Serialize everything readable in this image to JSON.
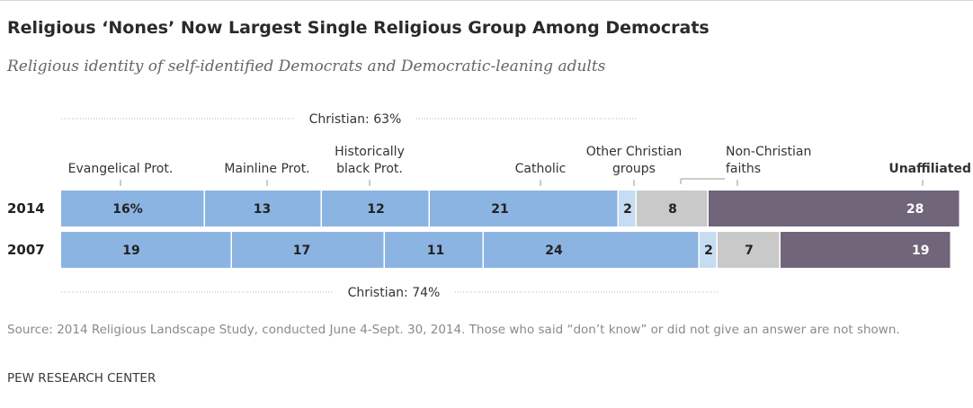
{
  "title": "Religious ‘Nones’ Now Largest Single Religious Group Among Democrats",
  "subtitle": "Religious identity of self-identified Democrats and Democratic-leaning adults",
  "source_note": "Source: 2014 Religious Landscape Study, conducted June 4-Sept. 30, 2014. Those who said “don’t know” or did not give an answer are not shown.",
  "org": "PEW RESEARCH CENTER",
  "colors": {
    "christian": "#8cb4e2",
    "other_christian": "#c6dcf2",
    "non_christian": "#c9c9c9",
    "unaffiliated": "#706579",
    "bracket": "#b5b5b5"
  },
  "chart_data": {
    "type": "bar",
    "orientation": "horizontal-stacked",
    "categories": [
      "Evangelical Prot.",
      "Mainline Prot.",
      "Historically black Prot.",
      "Catholic",
      "Other Christian groups",
      "Non-Christian faiths",
      "Unaffiliated"
    ],
    "category_label_lines": [
      [
        "Evangelical Prot."
      ],
      [
        "Mainline Prot."
      ],
      [
        "Historically",
        "black Prot."
      ],
      [
        "Catholic"
      ],
      [
        "Other Christian",
        "groups"
      ],
      [
        "Non-Christian",
        "faiths"
      ],
      [
        "Unaffiliated"
      ]
    ],
    "series": [
      {
        "name": "2014",
        "values": [
          16,
          13,
          12,
          21,
          2,
          8,
          28
        ],
        "labels": [
          "16%",
          "13",
          "12",
          "21",
          "2",
          "8",
          "28"
        ]
      },
      {
        "name": "2007",
        "values": [
          19,
          17,
          11,
          24,
          2,
          7,
          19
        ],
        "labels": [
          "19",
          "17",
          "11",
          "24",
          "2",
          "7",
          "19"
        ]
      }
    ],
    "brackets": [
      {
        "label": "Christian: 63%",
        "series": "2014"
      },
      {
        "label": "Christian: 74%",
        "series": "2007"
      }
    ],
    "xlim": [
      0,
      100
    ]
  }
}
